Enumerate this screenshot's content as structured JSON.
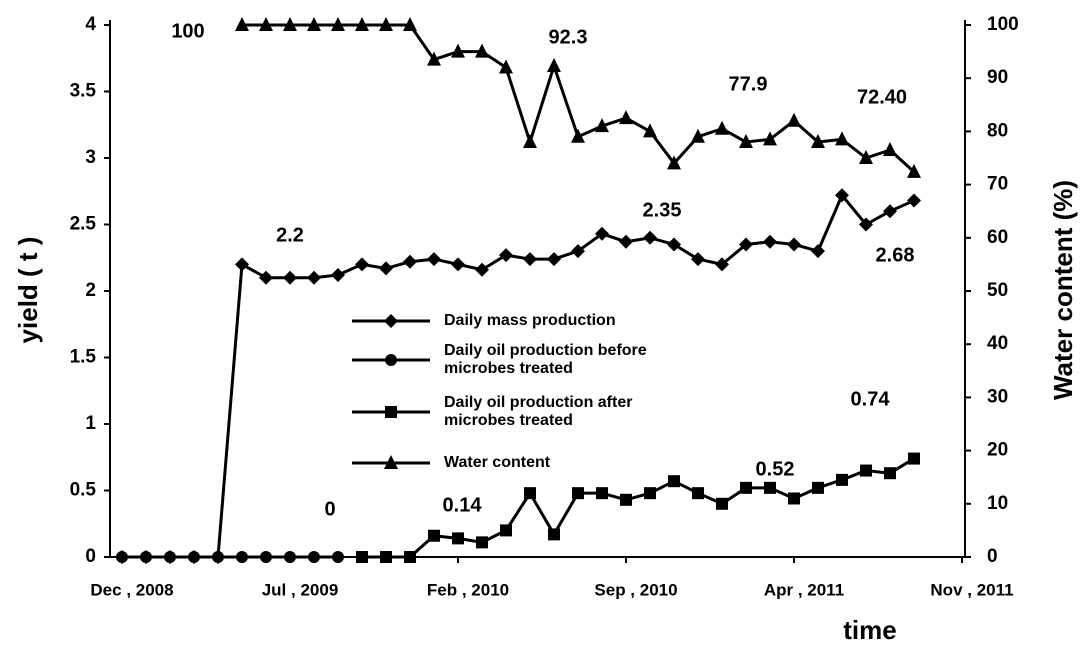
{
  "chart_data": {
    "type": "line",
    "x_label": "time",
    "y_label": "yield ( t )",
    "y2_label": "Water content (%)",
    "categories": [
      "Dec , 2008",
      null,
      null,
      null,
      null,
      null,
      null,
      "Jul , 2009",
      null,
      null,
      null,
      null,
      null,
      null,
      "Feb , 2010",
      null,
      null,
      null,
      null,
      null,
      null,
      "Sep , 2010",
      null,
      null,
      null,
      null,
      null,
      null,
      "Apr , 2011",
      null,
      null,
      null,
      null,
      null,
      null,
      "Nov , 2011"
    ],
    "series": [
      {
        "name": "Daily mass production",
        "color": "#000000",
        "marker": "diamond",
        "values": [
          0,
          0,
          0,
          0,
          0,
          2.2,
          2.1,
          2.1,
          2.1,
          2.12,
          2.2,
          2.17,
          2.22,
          2.24,
          2.2,
          2.16,
          2.27,
          2.24,
          2.24,
          2.3,
          2.43,
          2.37,
          2.4,
          2.35,
          2.24,
          2.2,
          2.35,
          2.37,
          2.35,
          2.3,
          2.72,
          2.5,
          2.6,
          2.68,
          null,
          null
        ]
      },
      {
        "name": "Daily oil production before microbes treated",
        "color": "#000000",
        "marker": "circle",
        "values": [
          0,
          0,
          0,
          0,
          0,
          0,
          0,
          0,
          0,
          0,
          null,
          null,
          null,
          null,
          null,
          null,
          null,
          null,
          null,
          null,
          null,
          null,
          null,
          null,
          null,
          null,
          null,
          null,
          null,
          null,
          null,
          null,
          null,
          null,
          null,
          null
        ]
      },
      {
        "name": "Daily oil production after microbes treated",
        "color": "#000000",
        "marker": "square",
        "values": [
          null,
          null,
          null,
          null,
          null,
          null,
          null,
          null,
          null,
          null,
          0,
          0,
          0,
          0.16,
          0.14,
          0.11,
          0.2,
          0.48,
          0.17,
          0.48,
          0.48,
          0.43,
          0.48,
          0.57,
          0.48,
          0.4,
          0.52,
          0.52,
          0.44,
          0.52,
          0.58,
          0.65,
          0.63,
          0.74,
          null,
          null
        ]
      },
      {
        "name": "Water content",
        "color": "#000000",
        "marker": "triangle",
        "axis": "y2",
        "values": [
          null,
          null,
          null,
          null,
          null,
          100,
          100,
          100,
          100,
          100,
          100,
          100,
          100,
          93.5,
          95,
          95,
          92,
          78,
          92.3,
          79,
          81,
          82.5,
          80,
          74,
          79,
          80.5,
          78,
          78.5,
          82,
          78,
          78.5,
          75,
          76.5,
          72.4,
          null,
          null
        ]
      }
    ],
    "annotations": [
      "100",
      "92.3",
      "77.9",
      "72.40",
      "2.2",
      "2.35",
      "2.68",
      "0",
      "0.14",
      "0.52",
      "0.74"
    ],
    "ylim": [
      0,
      4
    ],
    "yticks": [
      0,
      0.5,
      1,
      1.5,
      2,
      2.5,
      3,
      3.5,
      4
    ],
    "y2lim": [
      0,
      100
    ],
    "y2ticks": [
      0,
      10,
      20,
      30,
      40,
      50,
      60,
      70,
      80,
      90,
      100
    ],
    "grid": false
  }
}
